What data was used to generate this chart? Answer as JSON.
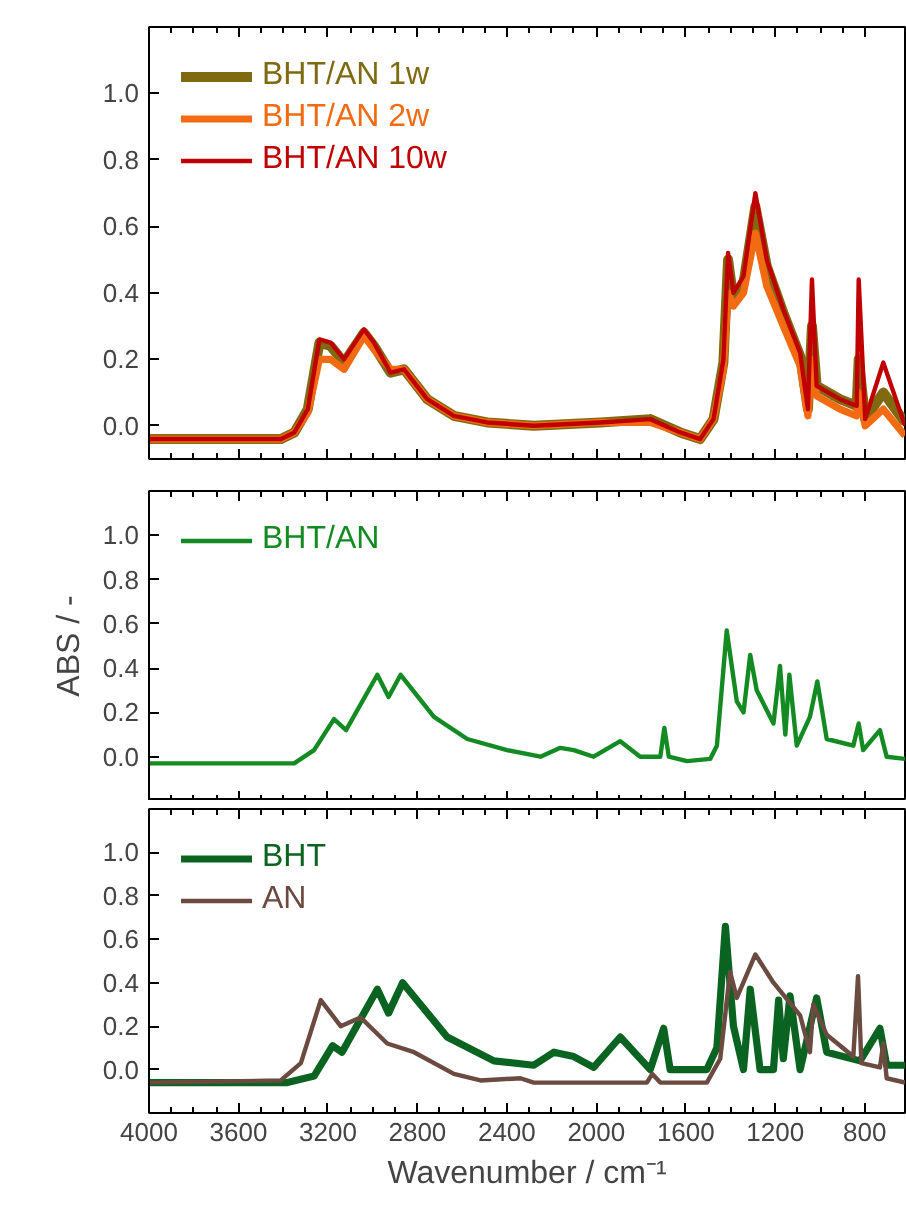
{
  "chart_data": [
    {
      "type": "line",
      "xlim": [
        4000,
        620
      ],
      "ylim": [
        -0.1,
        1.2
      ],
      "xticks": [
        4000,
        3600,
        3200,
        2800,
        2400,
        2000,
        1600,
        1200,
        800
      ],
      "yticks": [
        {
          "value": 0,
          "label": "0.0"
        },
        {
          "value": 0.2,
          "label": "0.2"
        },
        {
          "value": 0.4,
          "label": "0.4"
        },
        {
          "value": 0.6,
          "label": "0.6"
        },
        {
          "value": 0.8,
          "label": "0.8"
        },
        {
          "value": 1.0,
          "label": "1.0"
        }
      ],
      "tick_labels": "y",
      "legend": "top left",
      "x": [
        4000,
        3410,
        3350,
        3290,
        3238,
        3188,
        3128,
        3039,
        2994,
        2920,
        2860,
        2756,
        2637,
        2488,
        2280,
        1982,
        1759,
        1625,
        1536,
        1476,
        1432,
        1411,
        1387,
        1342,
        1289,
        1238,
        1164,
        1089,
        1054,
        1036,
        1015,
        911,
        836,
        827,
        798,
        717,
        620
      ],
      "series": [
        {
          "name": "BHT/AN 1w",
          "color": "#7f6a12",
          "values": [
            -0.04,
            -0.04,
            -0.02,
            0.05,
            0.25,
            0.24,
            0.19,
            0.28,
            0.24,
            0.16,
            0.17,
            0.08,
            0.03,
            0.01,
            0.0,
            0.01,
            0.02,
            -0.02,
            -0.04,
            0.02,
            0.19,
            0.5,
            0.38,
            0.43,
            0.66,
            0.48,
            0.34,
            0.21,
            0.05,
            0.3,
            0.12,
            0.08,
            0.06,
            0.2,
            0.02,
            0.1,
            0.01
          ]
        },
        {
          "name": "BHT/AN 2w",
          "color": "#f26b12",
          "values": [
            -0.04,
            -0.04,
            -0.02,
            0.04,
            0.2,
            0.2,
            0.17,
            0.27,
            0.23,
            0.17,
            0.17,
            0.08,
            0.03,
            0.01,
            0.0,
            0.01,
            0.01,
            -0.02,
            -0.04,
            0.02,
            0.17,
            0.4,
            0.36,
            0.4,
            0.58,
            0.42,
            0.3,
            0.18,
            0.03,
            0.2,
            0.09,
            0.05,
            0.03,
            0.1,
            0.0,
            0.05,
            -0.03
          ]
        },
        {
          "name": "BHT/AN 10w",
          "color": "#c00000",
          "values": [
            -0.04,
            -0.04,
            -0.02,
            0.05,
            0.26,
            0.25,
            0.2,
            0.29,
            0.25,
            0.16,
            0.17,
            0.08,
            0.03,
            0.01,
            0.0,
            0.01,
            0.02,
            -0.02,
            -0.04,
            0.02,
            0.2,
            0.52,
            0.4,
            0.45,
            0.7,
            0.5,
            0.35,
            0.22,
            0.05,
            0.44,
            0.12,
            0.08,
            0.06,
            0.44,
            0.02,
            0.19,
            0.0
          ]
        }
      ]
    },
    {
      "type": "line",
      "xlim": [
        4000,
        620
      ],
      "ylim": [
        -0.2,
        1.2
      ],
      "xticks": [
        4000,
        3600,
        3200,
        2800,
        2400,
        2000,
        1600,
        1200,
        800
      ],
      "yticks": [
        {
          "value": 0,
          "label": "0.0"
        },
        {
          "value": 0.2,
          "label": "0.2"
        },
        {
          "value": 0.4,
          "label": "0.4"
        },
        {
          "value": 0.6,
          "label": "0.6"
        },
        {
          "value": 0.8,
          "label": "0.8"
        },
        {
          "value": 1.0,
          "label": "1.0"
        }
      ],
      "tick_labels": "y",
      "legend": "top left",
      "ylabel": "ABS / -",
      "x": [
        4000,
        3351,
        3262,
        3173,
        3119,
        2979,
        2929,
        2875,
        2726,
        2577,
        2399,
        2250,
        2161,
        2101,
        2012,
        1893,
        1804,
        1714,
        1696,
        1676,
        1595,
        1491,
        1461,
        1417,
        1372,
        1342,
        1312,
        1283,
        1208,
        1179,
        1155,
        1137,
        1104,
        1045,
        1012,
        970,
        851,
        827,
        807,
        732,
        702,
        620
      ],
      "series": [
        {
          "name": "BHT/AN",
          "color": "#138a22",
          "values": [
            -0.03,
            -0.03,
            0.03,
            0.17,
            0.12,
            0.37,
            0.27,
            0.37,
            0.18,
            0.08,
            0.03,
            0.0,
            0.04,
            0.03,
            0.0,
            0.07,
            0.0,
            0.0,
            0.13,
            0.0,
            -0.02,
            -0.01,
            0.05,
            0.57,
            0.25,
            0.2,
            0.46,
            0.3,
            0.15,
            0.41,
            0.1,
            0.37,
            0.05,
            0.18,
            0.34,
            0.08,
            0.05,
            0.15,
            0.03,
            0.12,
            0.0,
            -0.01
          ]
        }
      ]
    },
    {
      "type": "line",
      "xlim": [
        4000,
        620
      ],
      "ylim": [
        -0.2,
        1.2
      ],
      "xticks": [
        4000,
        3600,
        3200,
        2800,
        2400,
        2000,
        1600,
        1200,
        800
      ],
      "yticks": [
        {
          "value": 0,
          "label": "0.0"
        },
        {
          "value": 0.2,
          "label": "0.2"
        },
        {
          "value": 0.4,
          "label": "0.4"
        },
        {
          "value": 0.6,
          "label": "0.6"
        },
        {
          "value": 0.8,
          "label": "0.8"
        },
        {
          "value": 1.0,
          "label": "1.0"
        }
      ],
      "legend": "top left",
      "xlabel": "Wavenumber / cm⁻¹",
      "series": [
        {
          "name": "BHT",
          "color": "#0a6320",
          "x": [
            4000,
            3381,
            3262,
            3179,
            3137,
            2979,
            2929,
            2866,
            2667,
            2458,
            2280,
            2190,
            2101,
            2012,
            1893,
            1759,
            1699,
            1670,
            1506,
            1461,
            1423,
            1387,
            1342,
            1312,
            1268,
            1208,
            1185,
            1164,
            1134,
            1089,
            1015,
            970,
            821,
            732,
            702,
            620
          ],
          "values": [
            -0.06,
            -0.06,
            -0.03,
            0.11,
            0.08,
            0.37,
            0.26,
            0.4,
            0.15,
            0.04,
            0.02,
            0.08,
            0.06,
            0.01,
            0.15,
            0.0,
            0.19,
            0.0,
            0.0,
            0.1,
            0.66,
            0.2,
            0.0,
            0.37,
            0.0,
            0.0,
            0.32,
            0.05,
            0.34,
            0.0,
            0.33,
            0.08,
            0.04,
            0.19,
            0.02,
            0.02
          ]
        },
        {
          "name": "AN",
          "color": "#6b4a40",
          "x": [
            4000,
            3411,
            3321,
            3232,
            3143,
            3054,
            2935,
            2815,
            2637,
            2518,
            2339,
            2280,
            1774,
            1750,
            1714,
            1506,
            1446,
            1402,
            1372,
            1289,
            1208,
            1089,
            1045,
            1030,
            970,
            851,
            830,
            815,
            732,
            717,
            702,
            620
          ],
          "values": [
            -0.06,
            -0.05,
            0.03,
            0.32,
            0.2,
            0.24,
            0.12,
            0.08,
            -0.02,
            -0.05,
            -0.04,
            -0.06,
            -0.06,
            -0.02,
            -0.06,
            -0.06,
            0.05,
            0.45,
            0.33,
            0.53,
            0.4,
            0.25,
            0.08,
            0.3,
            0.16,
            0.06,
            0.43,
            0.03,
            0.01,
            0.12,
            -0.04,
            -0.06
          ]
        }
      ]
    }
  ]
}
